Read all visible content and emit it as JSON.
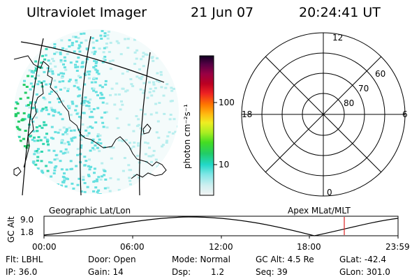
{
  "header": {
    "title": "Ultraviolet Imager",
    "date": "21 Jun 07",
    "time": "20:24:41 UT"
  },
  "colorbar": {
    "unit_label": "photon cm⁻²s⁻¹",
    "ticks": [
      "100",
      "10"
    ]
  },
  "polar_plot": {
    "mlt_labels": {
      "top": "12",
      "bottom": "0",
      "left": "18",
      "right": "6"
    },
    "lat_labels": [
      "60",
      "70",
      "80"
    ]
  },
  "footer_plot": {
    "left_caption": "Geographic Lat/Lon",
    "right_caption": "Apex MLat/MLT",
    "ylabel": "GC Alt",
    "y_ticks": [
      "9.0",
      "1.8"
    ],
    "x_ticks": [
      "00:00",
      "06:00",
      "12:00",
      "18:00",
      "23:59"
    ]
  },
  "info": {
    "flt": "Flt: LBHL",
    "door": "Door: Open",
    "mode": "Mode: Normal",
    "gc_alt": "GC Alt: 4.5 Re",
    "glat": "GLat: -42.4",
    "ip": "IP: 36.0",
    "gain": "Gain: 14",
    "dsp_label": "Dsp:",
    "dsp_value": "1.2",
    "seq": "Seq: 39",
    "glon": "GLon: 301.0"
  },
  "colors": {
    "accent_red": "#dd2222",
    "speckle_cyan": "#66e0e0",
    "speckle_green": "#22cc66"
  }
}
